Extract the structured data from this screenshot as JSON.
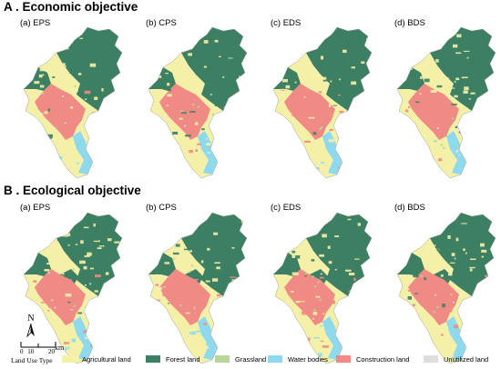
{
  "sections": [
    {
      "title": "A . Economic objective",
      "panels": [
        "(a) EPS",
        "(b) CPS",
        "(c) EDS",
        "(d) BDS"
      ]
    },
    {
      "title": "B . Ecological objective",
      "panels": [
        "(a) EPS",
        "(b) CPS",
        "(c) EDS",
        "(d) BDS"
      ]
    }
  ],
  "north_label": "N",
  "scale": {
    "ticks": [
      "0",
      "10",
      "20"
    ],
    "unit": "km"
  },
  "legend": {
    "title": "Land Use Type",
    "items": [
      {
        "label": "Agricultural land",
        "color": "#f5f0a8"
      },
      {
        "label": "Forest land",
        "color": "#3d7f63"
      },
      {
        "label": "Grassland",
        "color": "#b9d69a"
      },
      {
        "label": "Water bodies",
        "color": "#8fd9ef"
      },
      {
        "label": "Construction land",
        "color": "#f08a84"
      },
      {
        "label": "Unutilized land",
        "color": "#dedede"
      }
    ]
  },
  "map_colors": {
    "agricultural": "#f5f0a8",
    "forest": "#3d7f63",
    "grassland": "#b9d69a",
    "water": "#8fd9ef",
    "construction": "#f08a84",
    "unutilized": "#dedede"
  }
}
